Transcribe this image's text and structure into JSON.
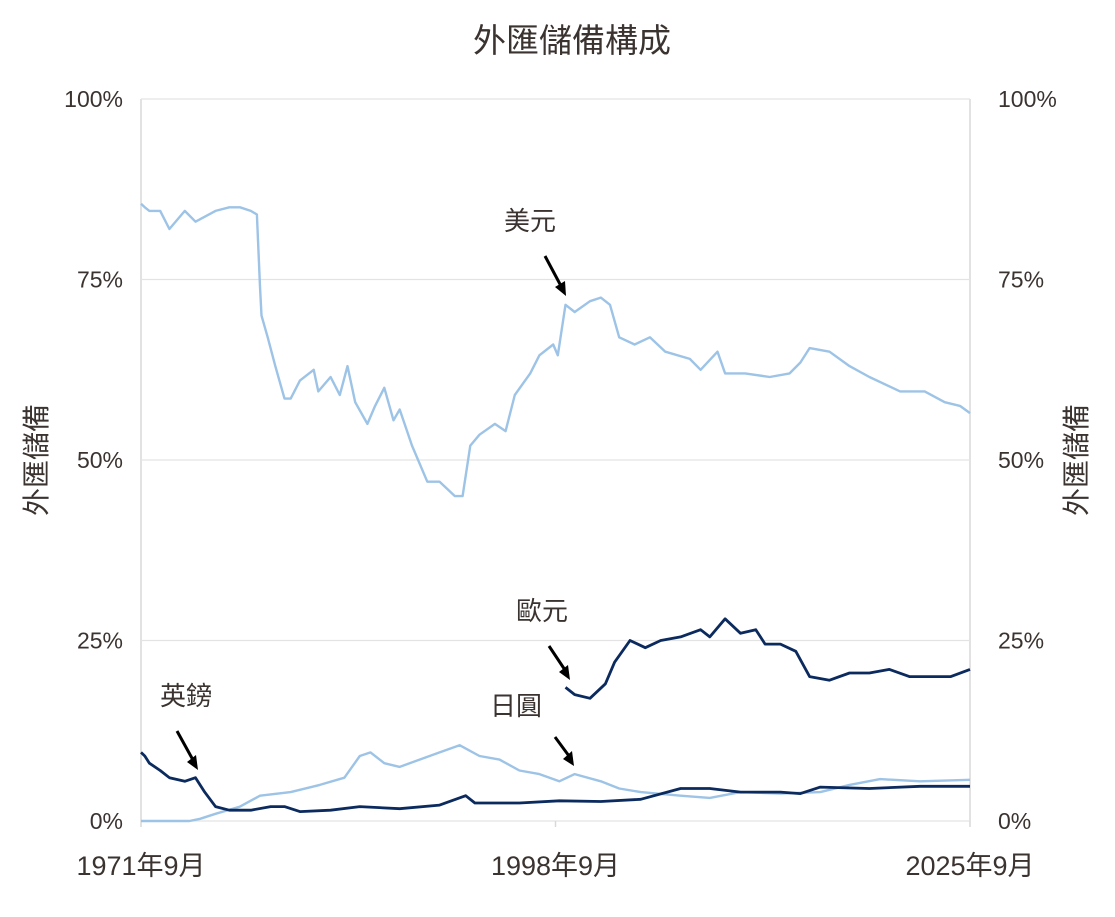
{
  "chart_data": {
    "type": "line",
    "title": "外匯儲備構成",
    "ylabel_left": "外匯儲備",
    "ylabel_right": "外匯儲備",
    "ylim": [
      0,
      100
    ],
    "xlim": [
      1971.75,
      2025.75
    ],
    "y_ticks": [
      "0%",
      "25%",
      "50%",
      "75%",
      "100%"
    ],
    "y_tick_values": [
      0,
      25,
      50,
      75,
      100
    ],
    "x_ticks": [
      "1971年9月",
      "1998年9月",
      "2025年9月"
    ],
    "x_tick_values": [
      1971.75,
      1998.75,
      2025.75
    ],
    "grid": true,
    "legend": "none",
    "series": [
      {
        "name": "美元",
        "color": "#9dc3e6",
        "x": [
          1971.75,
          1972.0,
          1972.3,
          1973.0,
          1973.6,
          1974.6,
          1975.3,
          1976.6,
          1977.5,
          1978.2,
          1978.9,
          1979.3,
          1979.5,
          1979.6,
          1980.0,
          1980.5,
          1981.1,
          1981.5,
          1982.1,
          1983.0,
          1983.3,
          1984.1,
          1984.7,
          1985.2,
          1985.7,
          1986.5,
          1987.0,
          1987.6,
          1988.2,
          1988.6,
          1989.4,
          1990.4,
          1991.2,
          1992.2,
          1992.7,
          1993.2,
          1993.8,
          1994.8,
          1995.5,
          1996.1,
          1997.1,
          1997.7,
          1998.6,
          1998.9,
          1999.4,
          2000.0,
          2001.0,
          2001.7,
          2002.3,
          2002.9,
          2003.9,
          2004.9,
          2005.9,
          2007.5,
          2008.2,
          2009.3,
          2009.8,
          2011.1,
          2012.7,
          2014.0,
          2014.7,
          2015.3,
          2016.6,
          2017.9,
          2019.2,
          2021.2,
          2022.8,
          2024.1,
          2025.1,
          2025.75
        ],
        "values": [
          85.5,
          85,
          84.5,
          84.5,
          82,
          84.5,
          83,
          84.5,
          85,
          85,
          84.5,
          84,
          74,
          70,
          67,
          63,
          58.5,
          58.5,
          61,
          62.5,
          59.5,
          61.5,
          59,
          63,
          58,
          55,
          57.5,
          60,
          55.5,
          57,
          52,
          47,
          47,
          45,
          45,
          52,
          53.5,
          55,
          54,
          59,
          62,
          64.5,
          66,
          64.5,
          71.5,
          70.5,
          72,
          72.5,
          71.5,
          67,
          66,
          67,
          65,
          64,
          62.5,
          65,
          62,
          62,
          61.5,
          62,
          63.5,
          65.5,
          65,
          63,
          61.5,
          59.5,
          59.5,
          58,
          57.5,
          56.5
        ]
      },
      {
        "name": "歐元",
        "color": "#0b2a5e",
        "x": [
          1999.4,
          2000.0,
          2001.0,
          2002.0,
          2002.6,
          2003.6,
          2004.6,
          2005.6,
          2006.9,
          2008.2,
          2008.8,
          2009.8,
          2010.8,
          2011.8,
          2012.4,
          2013.4,
          2014.4,
          2015.3,
          2016.6,
          2017.9,
          2019.2,
          2020.5,
          2021.8,
          2023.2,
          2024.5,
          2025.75
        ],
        "values": [
          18.5,
          17.5,
          17,
          19,
          22,
          25,
          24,
          25,
          25.5,
          26.5,
          25.5,
          28,
          26,
          26.5,
          24.5,
          24.5,
          23.5,
          20,
          19.5,
          20.5,
          20.5,
          21,
          20,
          20,
          20,
          21
        ]
      },
      {
        "name": "英鎊",
        "color": "#0b2a5e",
        "x": [
          1971.75,
          1972.0,
          1972.3,
          1973.0,
          1973.6,
          1974.6,
          1975.3,
          1975.9,
          1976.6,
          1977.5,
          1978.9,
          1980.2,
          1981.1,
          1982.1,
          1984.1,
          1986.0,
          1988.6,
          1991.2,
          1992.9,
          1993.5,
          1996.4,
          1999.0,
          2001.7,
          2004.3,
          2006.9,
          2008.8,
          2010.8,
          2013.4,
          2014.7,
          2016.0,
          2019.2,
          2022.5,
          2025.75
        ],
        "values": [
          9.5,
          9,
          8,
          7,
          6,
          5.5,
          6,
          4,
          2,
          1.5,
          1.5,
          2,
          2,
          1.3,
          1.5,
          2,
          1.7,
          2.2,
          3.5,
          2.5,
          2.5,
          2.8,
          2.7,
          3,
          4.5,
          4.5,
          4,
          4,
          3.8,
          4.7,
          4.5,
          4.8,
          4.8
        ]
      },
      {
        "name": "日圓",
        "color": "#9dc3e6",
        "x": [
          1971.75,
          1974.9,
          1975.6,
          1976.6,
          1978.2,
          1979.5,
          1981.5,
          1983.4,
          1985.0,
          1986.0,
          1986.7,
          1987.6,
          1988.6,
          1989.9,
          1991.2,
          1992.5,
          1993.8,
          1995.1,
          1996.4,
          1997.7,
          1999.0,
          2000.0,
          2001.7,
          2002.9,
          2004.3,
          2006.9,
          2008.8,
          2010.8,
          2013.4,
          2016.0,
          2017.9,
          2019.9,
          2022.5,
          2025.75
        ],
        "values": [
          0,
          0,
          0.3,
          1,
          2,
          3.5,
          4,
          5,
          6,
          9,
          9.5,
          8,
          7.5,
          8.5,
          9.5,
          10.5,
          9,
          8.5,
          7,
          6.5,
          5.5,
          6.5,
          5.5,
          4.5,
          4,
          3.5,
          3.2,
          4,
          3.8,
          4,
          5,
          5.8,
          5.5,
          5.7
        ]
      }
    ],
    "annotations": [
      {
        "text": "美元",
        "series": "美元"
      },
      {
        "text": "歐元",
        "series": "歐元"
      },
      {
        "text": "英鎊",
        "series": "英鎊"
      },
      {
        "text": "日圓",
        "series": "日圓"
      }
    ]
  }
}
